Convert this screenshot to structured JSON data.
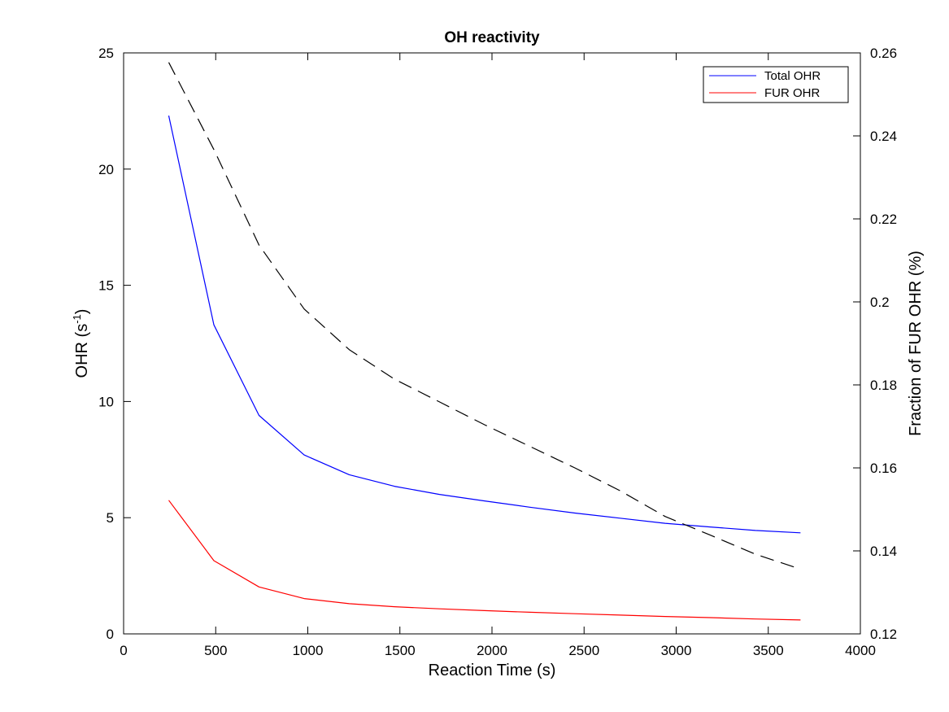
{
  "chart_data": {
    "type": "line",
    "title": "OH reactivity",
    "xlabel": "Reaction Time (s)",
    "ylabel_left": "OHR (s",
    "ylabel_left_sup": "-1",
    "ylabel_left_tail": ")",
    "ylabel_right": "Fraction of FUR OHR (%)",
    "xlim": [
      0,
      4000
    ],
    "ylim_left": [
      0,
      25
    ],
    "ylim_right": [
      0.12,
      0.26
    ],
    "x_ticks": [
      "0",
      "500",
      "1000",
      "1500",
      "2000",
      "2500",
      "3000",
      "3500",
      "4000"
    ],
    "y_left_ticks": [
      "0",
      "5",
      "10",
      "15",
      "20",
      "25"
    ],
    "y_right_ticks": [
      "0.12",
      "0.14",
      "0.16",
      "0.18",
      "0.2",
      "0.22",
      "0.24",
      "0.26"
    ],
    "grid": false,
    "legend_position": "top-right",
    "x": [
      245,
      490,
      735,
      980,
      1225,
      1470,
      1715,
      1960,
      2205,
      2450,
      2695,
      2940,
      3185,
      3430,
      3675
    ],
    "series": [
      {
        "name": "Total OHR",
        "axis": "left",
        "color": "#0000ff",
        "style": "solid",
        "values": [
          22.3,
          13.3,
          9.4,
          7.7,
          6.85,
          6.35,
          6.0,
          5.72,
          5.45,
          5.2,
          4.98,
          4.76,
          4.6,
          4.45,
          4.35
        ],
        "legend": true
      },
      {
        "name": "FUR OHR",
        "axis": "left",
        "color": "#ff0000",
        "style": "solid",
        "values": [
          5.75,
          3.15,
          2.02,
          1.52,
          1.3,
          1.17,
          1.08,
          1.0,
          0.93,
          0.87,
          0.81,
          0.75,
          0.7,
          0.64,
          0.6
        ],
        "legend": true
      },
      {
        "axis": "right",
        "color": "#000000",
        "style": "dashed",
        "values": [
          0.2577,
          0.2367,
          0.2137,
          0.1983,
          0.1885,
          0.1814,
          0.1759,
          0.1704,
          0.1652,
          0.16,
          0.1545,
          0.1483,
          0.1438,
          0.1392,
          0.1356
        ],
        "legend": false
      }
    ]
  }
}
